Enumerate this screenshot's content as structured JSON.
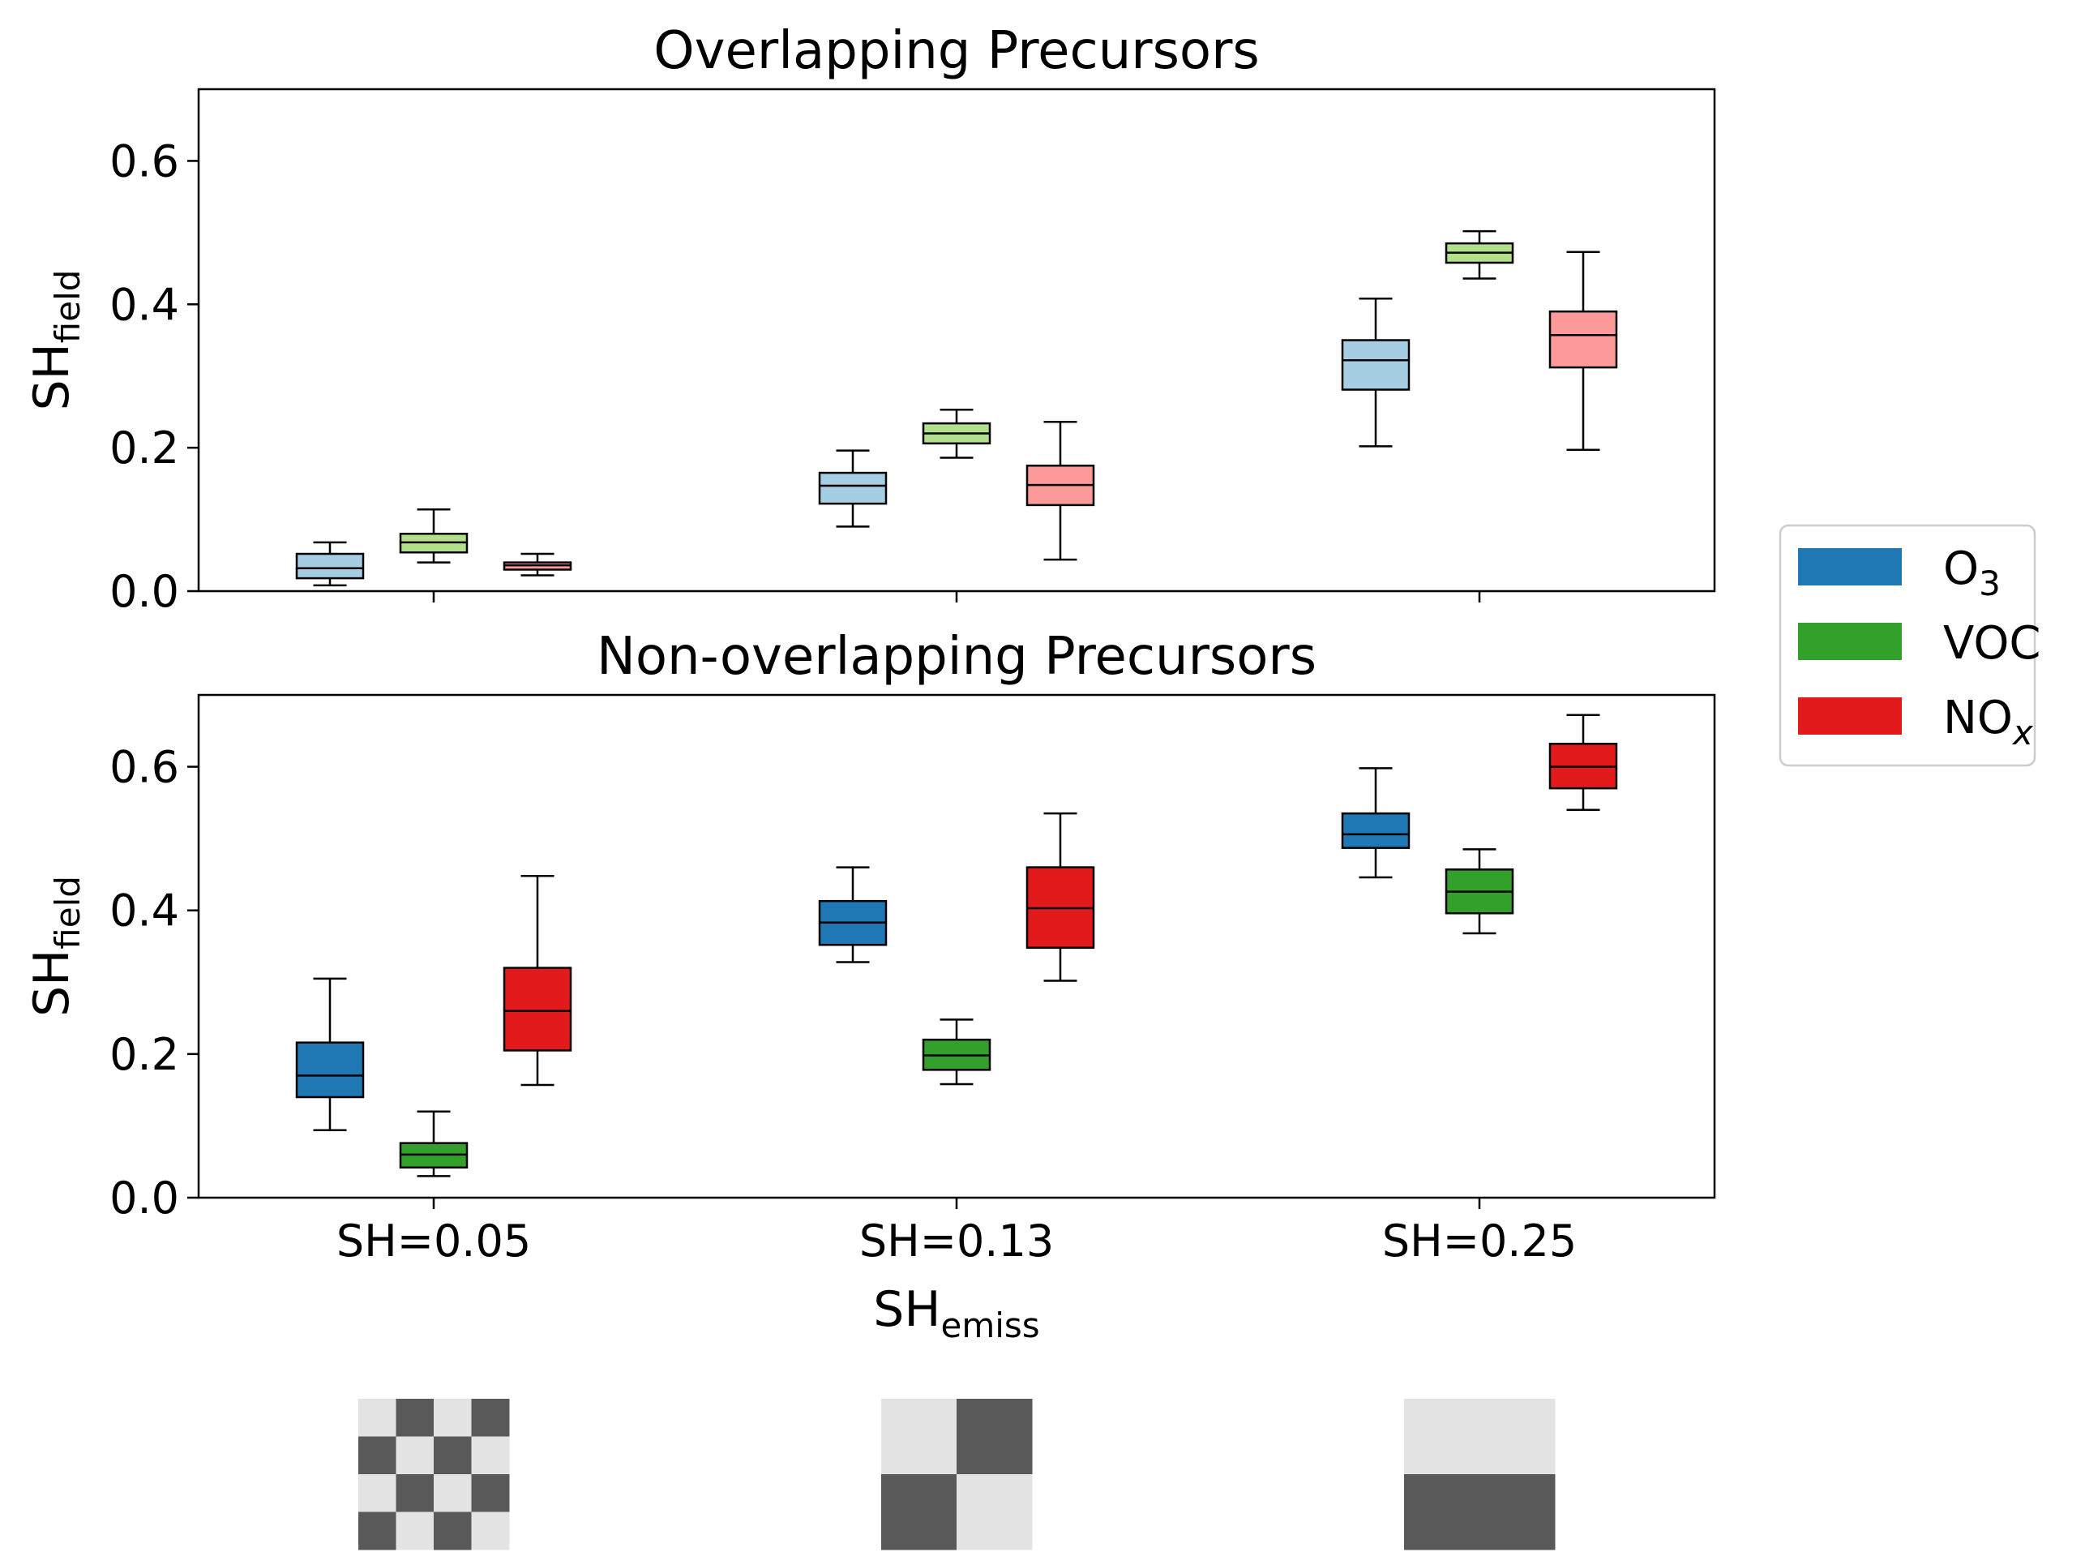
{
  "colors": {
    "O3_light": "#a6cee3",
    "VOC_light": "#b2df8a",
    "NOx_light": "#fb9a99",
    "O3": "#1f78b4",
    "VOC": "#33a02c",
    "NOx": "#e31a1c",
    "pattern_dark": "#595959",
    "pattern_light": "#e3e3e3"
  },
  "legend": {
    "items": [
      {
        "main": "O",
        "sub": "3",
        "sub_italic": false,
        "color": "#1f78b4"
      },
      {
        "main": "VOC",
        "sub": "",
        "sub_italic": false,
        "color": "#33a02c"
      },
      {
        "main": "NO",
        "sub": "x",
        "sub_italic": true,
        "color": "#e31a1c"
      }
    ],
    "placement": "center-right"
  },
  "xaxis": {
    "main": "SH",
    "sub": "emiss"
  },
  "chart_data": [
    {
      "type": "box",
      "title": "Overlapping Precursors",
      "ylabel_main": "SH",
      "ylabel_sub": "field",
      "ylim": [
        0,
        0.7
      ],
      "yticks": [
        "0.0",
        "0.2",
        "0.4",
        "0.6"
      ],
      "categories": [
        "SH=0.05",
        "SH=0.13",
        "SH=0.25"
      ],
      "show_category_labels": false,
      "series": [
        {
          "name": "O3",
          "color": "#a6cee3",
          "boxes": [
            {
              "whislo": 0.008,
              "q1": 0.018,
              "med": 0.032,
              "q3": 0.052,
              "whishi": 0.068
            },
            {
              "whislo": 0.09,
              "q1": 0.122,
              "med": 0.147,
              "q3": 0.165,
              "whishi": 0.196
            },
            {
              "whislo": 0.202,
              "q1": 0.281,
              "med": 0.322,
              "q3": 0.35,
              "whishi": 0.408
            }
          ]
        },
        {
          "name": "VOC",
          "color": "#b2df8a",
          "boxes": [
            {
              "whislo": 0.04,
              "q1": 0.054,
              "med": 0.068,
              "q3": 0.08,
              "whishi": 0.114
            },
            {
              "whislo": 0.186,
              "q1": 0.206,
              "med": 0.22,
              "q3": 0.234,
              "whishi": 0.253
            },
            {
              "whislo": 0.436,
              "q1": 0.458,
              "med": 0.472,
              "q3": 0.485,
              "whishi": 0.502
            }
          ]
        },
        {
          "name": "NOx",
          "color": "#fb9a99",
          "boxes": [
            {
              "whislo": 0.022,
              "q1": 0.03,
              "med": 0.036,
              "q3": 0.04,
              "whishi": 0.052
            },
            {
              "whislo": 0.044,
              "q1": 0.12,
              "med": 0.148,
              "q3": 0.175,
              "whishi": 0.236
            },
            {
              "whislo": 0.197,
              "q1": 0.312,
              "med": 0.357,
              "q3": 0.39,
              "whishi": 0.473
            }
          ]
        }
      ]
    },
    {
      "type": "box",
      "title": "Non-overlapping Precursors",
      "ylabel_main": "SH",
      "ylabel_sub": "field",
      "ylim": [
        0,
        0.7
      ],
      "yticks": [
        "0.0",
        "0.2",
        "0.4",
        "0.6"
      ],
      "categories": [
        "SH=0.05",
        "SH=0.13",
        "SH=0.25"
      ],
      "show_category_labels": true,
      "series": [
        {
          "name": "O3",
          "color": "#1f78b4",
          "boxes": [
            {
              "whislo": 0.094,
              "q1": 0.14,
              "med": 0.17,
              "q3": 0.216,
              "whishi": 0.305
            },
            {
              "whislo": 0.328,
              "q1": 0.352,
              "med": 0.383,
              "q3": 0.413,
              "whishi": 0.46
            },
            {
              "whislo": 0.446,
              "q1": 0.487,
              "med": 0.506,
              "q3": 0.535,
              "whishi": 0.598
            }
          ]
        },
        {
          "name": "VOC",
          "color": "#33a02c",
          "boxes": [
            {
              "whislo": 0.03,
              "q1": 0.042,
              "med": 0.06,
              "q3": 0.076,
              "whishi": 0.12
            },
            {
              "whislo": 0.158,
              "q1": 0.178,
              "med": 0.198,
              "q3": 0.22,
              "whishi": 0.248
            },
            {
              "whislo": 0.368,
              "q1": 0.396,
              "med": 0.426,
              "q3": 0.457,
              "whishi": 0.485
            }
          ]
        },
        {
          "name": "NOx",
          "color": "#e31a1c",
          "boxes": [
            {
              "whislo": 0.157,
              "q1": 0.205,
              "med": 0.26,
              "q3": 0.32,
              "whishi": 0.448
            },
            {
              "whislo": 0.302,
              "q1": 0.348,
              "med": 0.403,
              "q3": 0.46,
              "whishi": 0.535
            },
            {
              "whislo": 0.54,
              "q1": 0.57,
              "med": 0.6,
              "q3": 0.632,
              "whishi": 0.672
            }
          ]
        }
      ]
    }
  ],
  "patterns": [
    {
      "name": "SH=0.05",
      "grid": [
        [
          0,
          1,
          0,
          1
        ],
        [
          1,
          0,
          1,
          0
        ],
        [
          0,
          1,
          0,
          1
        ],
        [
          1,
          0,
          1,
          0
        ]
      ]
    },
    {
      "name": "SH=0.13",
      "grid": [
        [
          0,
          1
        ],
        [
          1,
          0
        ]
      ]
    },
    {
      "name": "SH=0.25",
      "grid": [
        [
          0
        ],
        [
          1
        ]
      ]
    }
  ]
}
